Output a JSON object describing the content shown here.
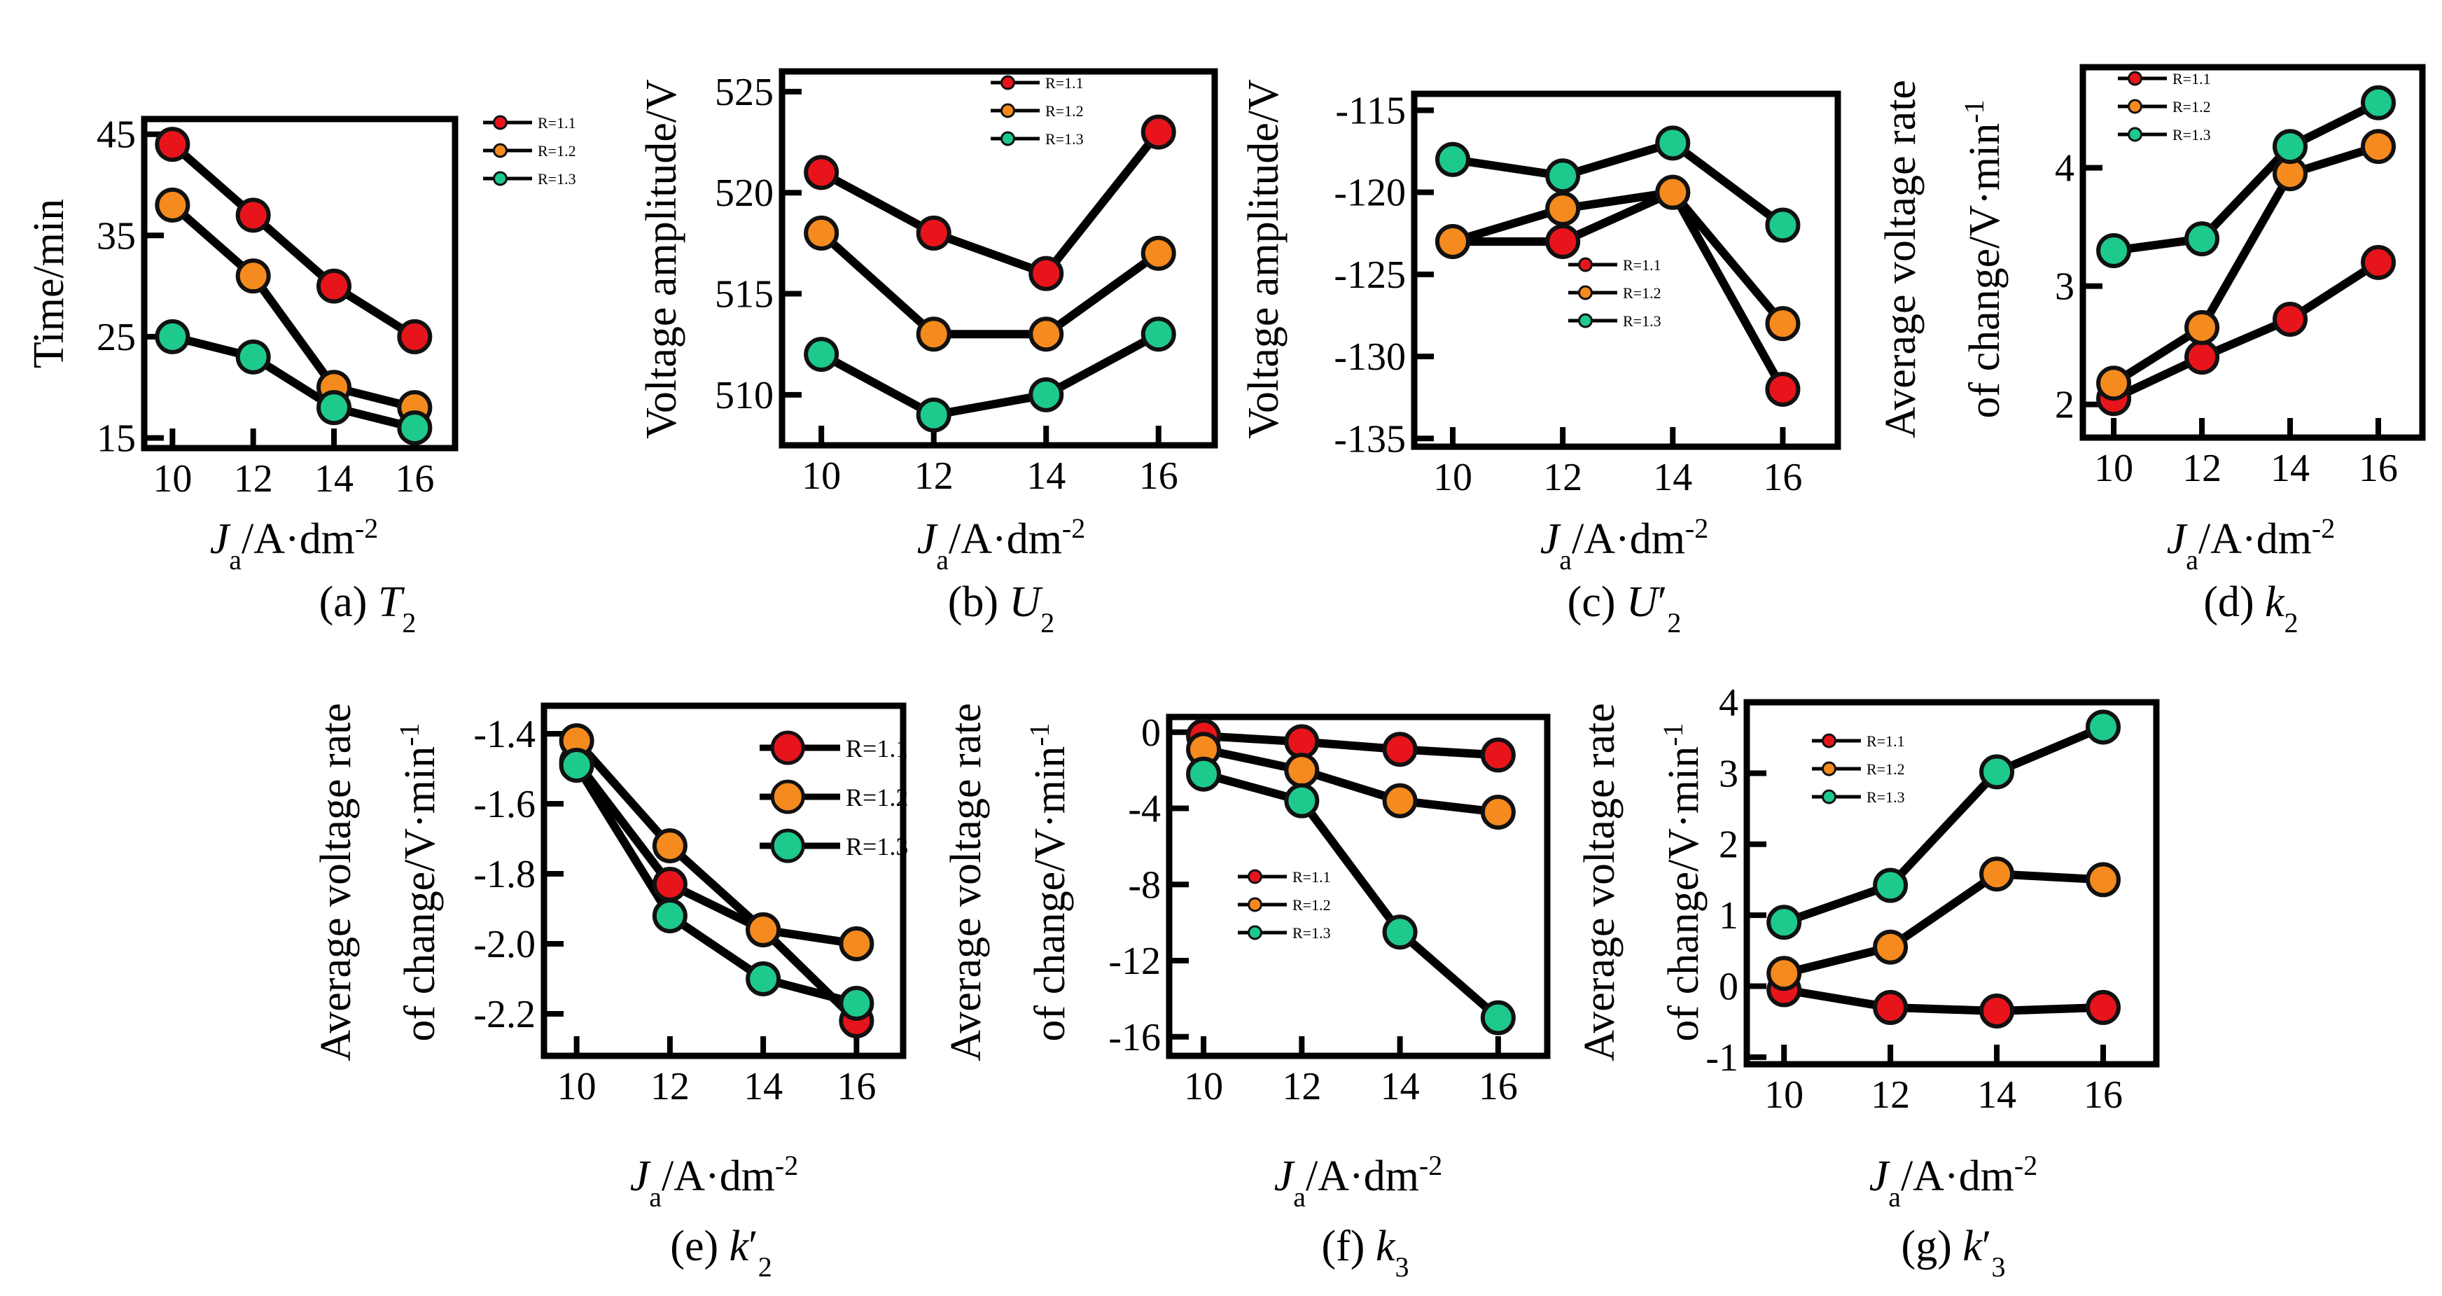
{
  "figure": {
    "series_colors": {
      "R=1.1": "#e8141c",
      "R=1.2": "#f58a1e",
      "R=1.3": "#1ec98c"
    },
    "marker_edge_color": "#111111",
    "line_color": "#000000"
  },
  "chart_data": [
    {
      "id": "a",
      "type": "line",
      "caption": "(a) T2",
      "caption_prefix": "(a) ",
      "caption_sym": "T",
      "caption_sub": "2",
      "caption_prime": "",
      "xlabel": "Ja/A·dm-2",
      "xlabel_var": "J",
      "xlabel_var_sub": "a",
      "xlabel_unit": "/A·dm",
      "xlabel_exp": "-2",
      "ylabel": "Time/min",
      "ylabel_lines": [
        "Time/min"
      ],
      "x": [
        10,
        12,
        14,
        16
      ],
      "xticks": [
        "10",
        "12",
        "14",
        "16"
      ],
      "xlim": [
        9.3,
        17.0
      ],
      "yticks": [
        "15",
        "25",
        "35",
        "45"
      ],
      "ytick_values": [
        15,
        25,
        35,
        45
      ],
      "ylim": [
        14,
        46.5
      ],
      "legend_labels": [
        "R=1.1",
        "R=1.2",
        "R=1.3"
      ],
      "legend_position": "top-right",
      "series": [
        {
          "name": "R=1.1",
          "values": [
            44,
            37,
            30,
            25
          ]
        },
        {
          "name": "R=1.2",
          "values": [
            38,
            31,
            20,
            18
          ]
        },
        {
          "name": "R=1.3",
          "values": [
            25,
            23,
            18,
            16
          ]
        }
      ]
    },
    {
      "id": "b",
      "type": "line",
      "caption": "(b) U2",
      "caption_prefix": "(b) ",
      "caption_sym": "U",
      "caption_sub": "2",
      "caption_prime": "",
      "xlabel": "Ja/A·dm-2",
      "xlabel_var": "J",
      "xlabel_var_sub": "a",
      "xlabel_unit": "/A·dm",
      "xlabel_exp": "-2",
      "ylabel": "Voltage amplitude/V",
      "ylabel_lines": [
        "Voltage amplitude/V"
      ],
      "x": [
        10,
        12,
        14,
        16
      ],
      "xticks": [
        "10",
        "12",
        "14",
        "16"
      ],
      "xlim": [
        9.3,
        17.0
      ],
      "yticks": [
        "510",
        "515",
        "520",
        "525"
      ],
      "ytick_values": [
        510,
        515,
        520,
        525
      ],
      "ylim": [
        507.5,
        526
      ],
      "legend_labels": [
        "R=1.1",
        "R=1.2",
        "R=1.3"
      ],
      "legend_position": "top-right",
      "series": [
        {
          "name": "R=1.1",
          "values": [
            521,
            518,
            516,
            523
          ]
        },
        {
          "name": "R=1.2",
          "values": [
            518,
            513,
            513,
            517
          ]
        },
        {
          "name": "R=1.3",
          "values": [
            512,
            509,
            510,
            513
          ]
        }
      ]
    },
    {
      "id": "c",
      "type": "line",
      "caption": "(c) U'2",
      "caption_prefix": "(c) ",
      "caption_sym": "U",
      "caption_sub": "2",
      "caption_prime": "′",
      "xlabel": "Ja/A·dm-2",
      "xlabel_var": "J",
      "xlabel_var_sub": "a",
      "xlabel_unit": "/A·dm",
      "xlabel_exp": "-2",
      "ylabel": "Voltage amplitude/V",
      "ylabel_lines": [
        "Voltage amplitude/V"
      ],
      "x": [
        10,
        12,
        14,
        16
      ],
      "xticks": [
        "10",
        "12",
        "14",
        "16"
      ],
      "xlim": [
        9.3,
        17.0
      ],
      "yticks": [
        "-115",
        "-120",
        "-125",
        "-130",
        "-135"
      ],
      "ytick_values": [
        -115,
        -120,
        -125,
        -130,
        -135
      ],
      "ylim": [
        -135.5,
        -114
      ],
      "legend_labels": [
        "R=1.1",
        "R=1.2",
        "R=1.3"
      ],
      "legend_position": "center",
      "series": [
        {
          "name": "R=1.1",
          "values": [
            -123,
            -123,
            -120,
            -132
          ]
        },
        {
          "name": "R=1.2",
          "values": [
            -123,
            -121,
            -120,
            -128
          ]
        },
        {
          "name": "R=1.3",
          "values": [
            -118,
            -119,
            -117,
            -122
          ]
        }
      ]
    },
    {
      "id": "d",
      "type": "line",
      "caption": "(d) k2",
      "caption_prefix": "(d) ",
      "caption_sym": "k",
      "caption_sub": "2",
      "caption_prime": "",
      "xlabel": "Ja/A·dm-2",
      "xlabel_var": "J",
      "xlabel_var_sub": "a",
      "xlabel_unit": "/A·dm",
      "xlabel_exp": "-2",
      "ylabel": "Average voltage rate of change/V·min-1",
      "ylabel_lines": [
        "Average voltage rate",
        "of change/V·min"
      ],
      "ylabel_exp": "-1",
      "x": [
        10,
        12,
        14,
        16
      ],
      "xticks": [
        "10",
        "12",
        "14",
        "16"
      ],
      "xlim": [
        9.3,
        17.0
      ],
      "yticks": [
        "2",
        "3",
        "4"
      ],
      "ytick_values": [
        2,
        3,
        4
      ],
      "ylim": [
        1.72,
        4.85
      ],
      "legend_labels": [
        "R=1.1",
        "R=1.2",
        "R=1.3"
      ],
      "legend_position": "top-left",
      "series": [
        {
          "name": "R=1.1",
          "values": [
            2.05,
            2.4,
            2.72,
            3.2
          ]
        },
        {
          "name": "R=1.2",
          "values": [
            2.18,
            2.65,
            3.95,
            4.18
          ]
        },
        {
          "name": "R=1.3",
          "values": [
            3.3,
            3.4,
            4.18,
            4.55
          ]
        }
      ]
    },
    {
      "id": "e",
      "type": "line",
      "caption": "(e) k'2",
      "caption_prefix": "(e) ",
      "caption_sym": "k",
      "caption_sub": "2",
      "caption_prime": "′",
      "xlabel": "Ja/A·dm-2",
      "xlabel_var": "J",
      "xlabel_var_sub": "a",
      "xlabel_unit": "/A·dm",
      "xlabel_exp": "-2",
      "ylabel": "Average voltage rate of change/V·min-1",
      "ylabel_lines": [
        "Average voltage rate",
        "of change/V·min"
      ],
      "ylabel_exp": "-1",
      "x": [
        10,
        12,
        14,
        16
      ],
      "xticks": [
        "10",
        "12",
        "14",
        "16"
      ],
      "xlim": [
        9.3,
        17.0
      ],
      "yticks": [
        "-1.4",
        "-1.6",
        "-1.8",
        "-2.0",
        "-2.2"
      ],
      "ytick_values": [
        -1.4,
        -1.6,
        -1.8,
        -2.0,
        -2.2
      ],
      "ylim": [
        -2.32,
        -1.32
      ],
      "legend_labels": [
        "R=1.1",
        "R=1.2",
        "R=1.3"
      ],
      "legend_position": "top-right",
      "series": [
        {
          "name": "R=1.1",
          "values": [
            -1.48,
            -1.83,
            -1.96,
            -2.22
          ]
        },
        {
          "name": "R=1.2",
          "values": [
            -1.42,
            -1.72,
            -1.96,
            -2.0
          ]
        },
        {
          "name": "R=1.3",
          "values": [
            -1.49,
            -1.92,
            -2.1,
            -2.17
          ]
        }
      ]
    },
    {
      "id": "f",
      "type": "line",
      "caption": "(f) k3",
      "caption_prefix": "(f) ",
      "caption_sym": "k",
      "caption_sub": "3",
      "caption_prime": "",
      "xlabel": "Ja/A·dm-2",
      "xlabel_var": "J",
      "xlabel_var_sub": "a",
      "xlabel_unit": "/A·dm",
      "xlabel_exp": "-2",
      "ylabel": "Average voltage rate of change/V·min-1",
      "ylabel_lines": [
        "Average voltage rate",
        "of change/V·min"
      ],
      "ylabel_exp": "-1",
      "x": [
        10,
        12,
        14,
        16
      ],
      "xticks": [
        "10",
        "12",
        "14",
        "16"
      ],
      "xlim": [
        9.3,
        17.0
      ],
      "yticks": [
        "0",
        "-4",
        "-8",
        "-12",
        "-16"
      ],
      "ytick_values": [
        0,
        -4,
        -8,
        -12,
        -16
      ],
      "ylim": [
        -17,
        0.8
      ],
      "legend_labels": [
        "R=1.1",
        "R=1.2",
        "R=1.3"
      ],
      "legend_position": "center-left",
      "series": [
        {
          "name": "R=1.1",
          "values": [
            -0.2,
            -0.5,
            -0.9,
            -1.2
          ]
        },
        {
          "name": "R=1.2",
          "values": [
            -0.9,
            -2.0,
            -3.6,
            -4.2
          ]
        },
        {
          "name": "R=1.3",
          "values": [
            -2.2,
            -3.6,
            -10.5,
            -15.0
          ]
        }
      ]
    },
    {
      "id": "g",
      "type": "line",
      "caption": "(g) k'3",
      "caption_prefix": "(g) ",
      "caption_sym": "k",
      "caption_sub": "3",
      "caption_prime": "′",
      "xlabel": "Ja/A·dm-2",
      "xlabel_var": "J",
      "xlabel_var_sub": "a",
      "xlabel_unit": "/A·dm",
      "xlabel_exp": "-2",
      "ylabel": "Average voltage rate of change/V·min-1",
      "ylabel_lines": [
        "Average voltage rate",
        "of change/V·min"
      ],
      "ylabel_exp": "-1",
      "x": [
        10,
        12,
        14,
        16
      ],
      "xticks": [
        "10",
        "12",
        "14",
        "16"
      ],
      "xlim": [
        9.3,
        17.0
      ],
      "yticks": [
        "4",
        "3",
        "2",
        "1",
        "0",
        "-1"
      ],
      "ytick_values": [
        4,
        3,
        2,
        1,
        0,
        -1
      ],
      "ylim": [
        -1.1,
        4.0
      ],
      "legend_labels": [
        "R=1.1",
        "R=1.2",
        "R=1.3"
      ],
      "legend_position": "top-left",
      "series": [
        {
          "name": "R=1.1",
          "values": [
            -0.05,
            -0.3,
            -0.35,
            -0.3
          ]
        },
        {
          "name": "R=1.2",
          "values": [
            0.18,
            0.55,
            1.58,
            1.5
          ]
        },
        {
          "name": "R=1.3",
          "values": [
            0.9,
            1.42,
            3.02,
            3.65
          ]
        }
      ]
    }
  ]
}
